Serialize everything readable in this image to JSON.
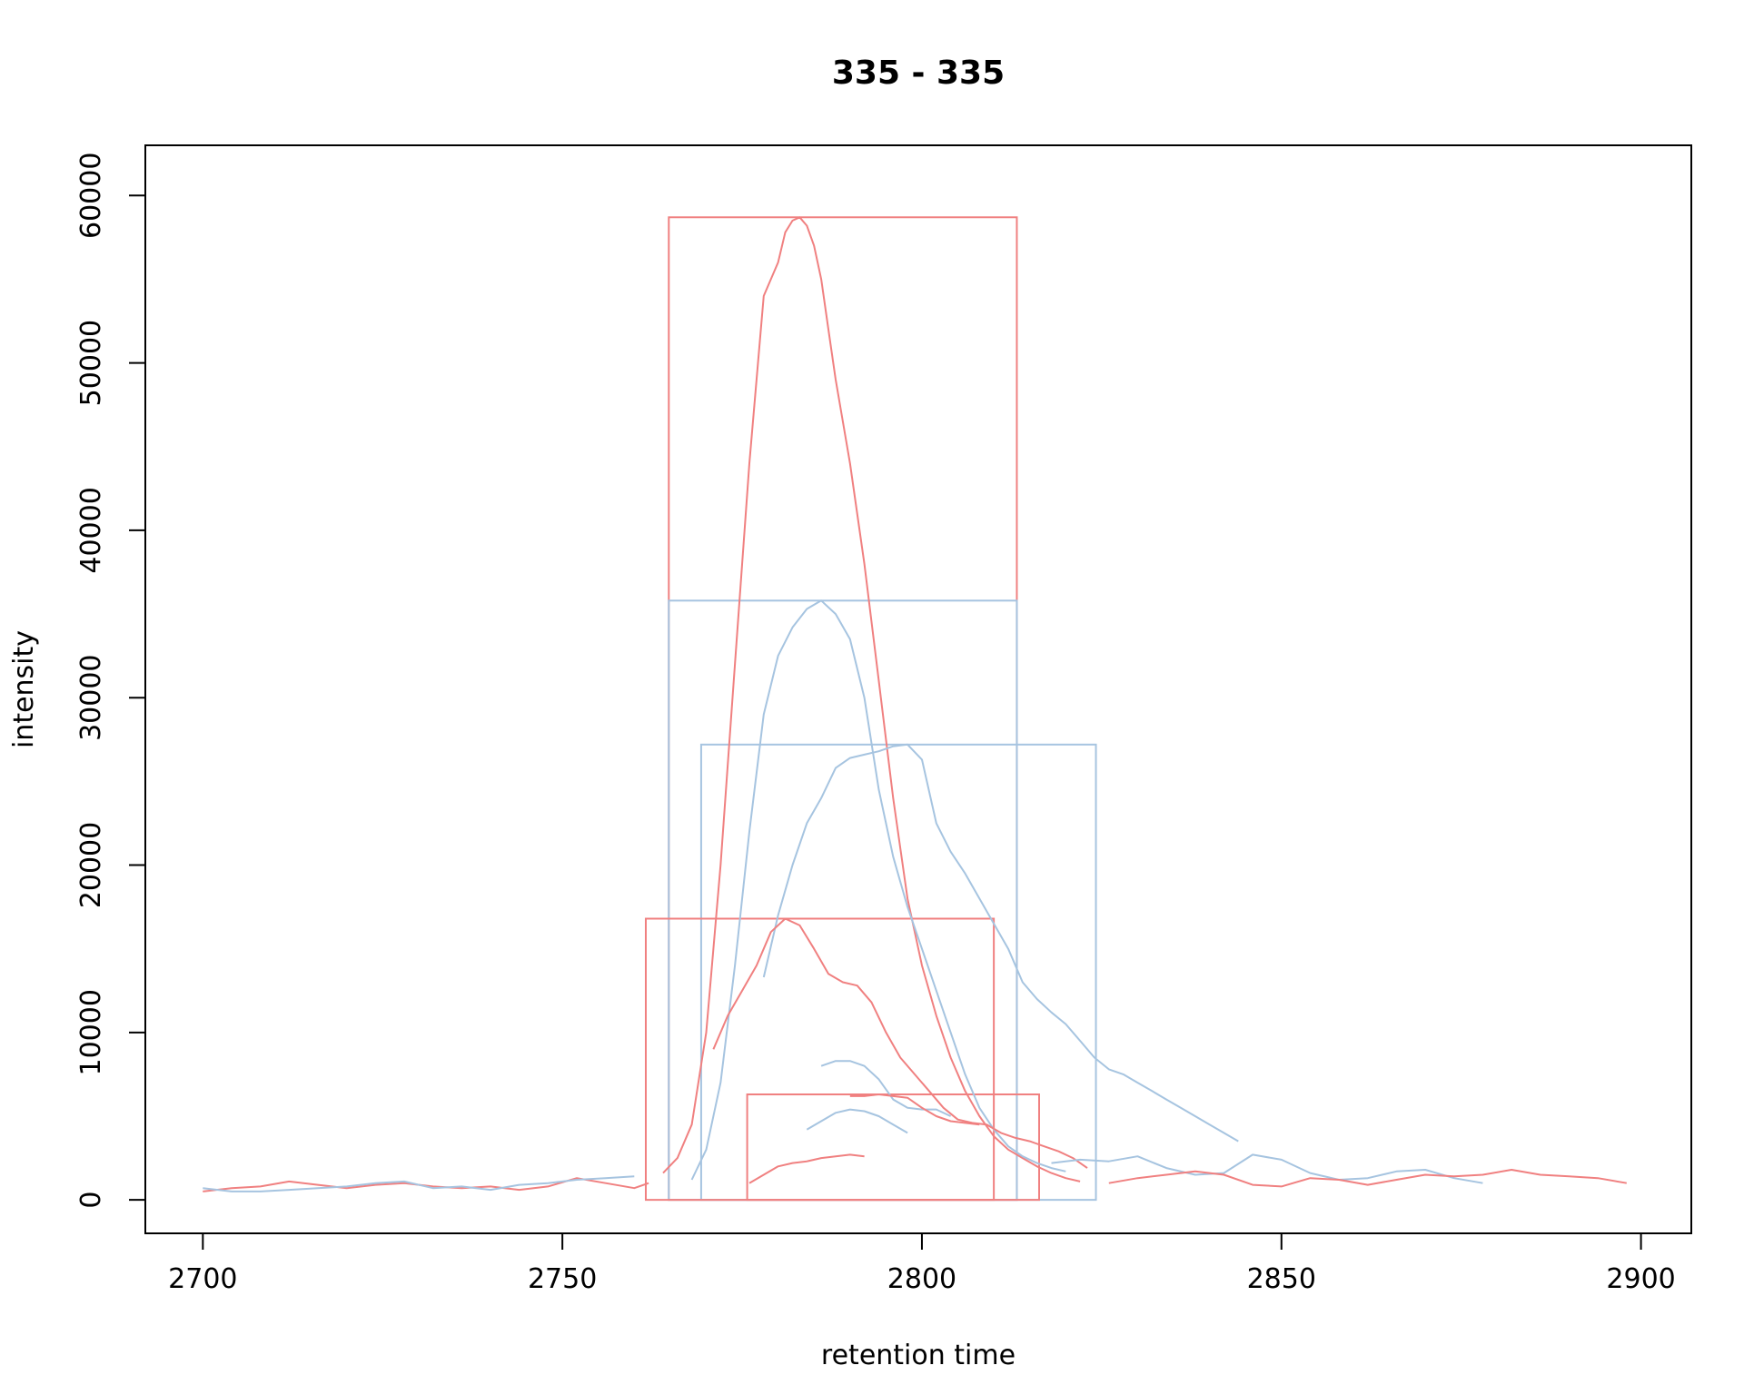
{
  "chart_data": {
    "type": "line",
    "title": "335 - 335",
    "xlabel": "retention time",
    "ylabel": "intensity",
    "xlim": [
      2692,
      2907
    ],
    "ylim": [
      -2000,
      63000
    ],
    "x_ticks": [
      2700,
      2750,
      2800,
      2850,
      2900
    ],
    "y_ticks": [
      0,
      10000,
      20000,
      30000,
      40000,
      50000,
      60000
    ],
    "grid": false,
    "legend": "none",
    "colors": {
      "red": "#f08080",
      "blue": "#a6c4e0"
    },
    "peak_rects": [
      {
        "color": "red",
        "x0": 2764.8,
        "x1": 2813.2,
        "y0": 0,
        "y1": 58700
      },
      {
        "color": "blue",
        "x0": 2764.8,
        "x1": 2813.2,
        "y0": 0,
        "y1": 35800
      },
      {
        "color": "blue",
        "x0": 2769.3,
        "x1": 2824.2,
        "y0": 0,
        "y1": 27200
      },
      {
        "color": "red",
        "x0": 2761.6,
        "x1": 2810.0,
        "y0": 0,
        "y1": 16800
      },
      {
        "color": "red",
        "x0": 2775.7,
        "x1": 2816.3,
        "y0": 0,
        "y1": 6300
      }
    ],
    "series": [
      {
        "color": "red",
        "x": [
          2764,
          2766,
          2768,
          2770,
          2772,
          2774,
          2776,
          2778,
          2780,
          2781,
          2782,
          2783,
          2784,
          2785,
          2786,
          2787,
          2788,
          2790,
          2792,
          2794,
          2796,
          2798,
          2800,
          2802,
          2804,
          2806,
          2808,
          2810,
          2812,
          2814,
          2816,
          2818,
          2820,
          2822
        ],
        "y": [
          1600,
          2500,
          4500,
          10000,
          20000,
          32000,
          44000,
          54000,
          56000,
          57800,
          58500,
          58700,
          58200,
          57000,
          55000,
          52000,
          49000,
          44000,
          38000,
          31000,
          24000,
          18000,
          14000,
          11000,
          8500,
          6500,
          5000,
          3800,
          3000,
          2500,
          2000,
          1600,
          1300,
          1100
        ]
      },
      {
        "color": "blue",
        "x": [
          2768,
          2770,
          2772,
          2774,
          2776,
          2778,
          2780,
          2782,
          2784,
          2786,
          2788,
          2790,
          2792,
          2794,
          2796,
          2798,
          2800,
          2802,
          2804,
          2806,
          2808,
          2810,
          2812,
          2814,
          2816,
          2818,
          2820
        ],
        "y": [
          1200,
          3000,
          7000,
          14000,
          22000,
          29000,
          32500,
          34200,
          35300,
          35800,
          35000,
          33500,
          30000,
          24500,
          20500,
          17500,
          15000,
          12500,
          10000,
          7500,
          5500,
          4200,
          3200,
          2600,
          2200,
          1900,
          1700
        ]
      },
      {
        "color": "blue",
        "x": [
          2778,
          2780,
          2782,
          2784,
          2786,
          2788,
          2790,
          2792,
          2794,
          2796,
          2798,
          2800,
          2802,
          2804,
          2806,
          2808,
          2810,
          2812,
          2814,
          2816,
          2818,
          2820,
          2822,
          2824,
          2826,
          2828,
          2830,
          2832,
          2834,
          2836,
          2838,
          2840,
          2842,
          2844
        ],
        "y": [
          13300,
          17000,
          20000,
          22500,
          24000,
          25800,
          26400,
          26600,
          26800,
          27100,
          27200,
          26300,
          22500,
          20800,
          19500,
          18000,
          16500,
          15000,
          13000,
          12000,
          11200,
          10500,
          9500,
          8500,
          7800,
          7500,
          7000,
          6500,
          6000,
          5500,
          5000,
          4500,
          4000,
          3500
        ]
      },
      {
        "color": "red",
        "x": [
          2771,
          2773,
          2775,
          2777,
          2779,
          2781,
          2783,
          2785,
          2787,
          2789,
          2791,
          2793,
          2795,
          2797,
          2799,
          2801,
          2803,
          2805,
          2807,
          2809,
          2811,
          2813,
          2815,
          2817,
          2819,
          2821,
          2823
        ],
        "y": [
          9000,
          11000,
          12500,
          14000,
          16000,
          16800,
          16400,
          15000,
          13500,
          13000,
          12800,
          11800,
          10000,
          8500,
          7500,
          6500,
          5500,
          4800,
          4600,
          4500,
          4000,
          3700,
          3500,
          3200,
          2900,
          2500,
          1900
        ]
      },
      {
        "color": "blue",
        "x": [
          2786,
          2788,
          2790,
          2792,
          2794,
          2796,
          2798,
          2800,
          2802,
          2804
        ],
        "y": [
          8000,
          8300,
          8300,
          8000,
          7200,
          6000,
          5500,
          5400,
          5400,
          5000
        ]
      },
      {
        "color": "red",
        "x": [
          2790,
          2792,
          2794,
          2796,
          2798,
          2800,
          2802,
          2804,
          2806,
          2808
        ],
        "y": [
          6200,
          6200,
          6300,
          6200,
          6100,
          5500,
          5000,
          4700,
          4600,
          4500
        ]
      },
      {
        "color": "blue",
        "x": [
          2784,
          2786,
          2788,
          2790,
          2792,
          2794,
          2796,
          2798
        ],
        "y": [
          4200,
          4700,
          5200,
          5400,
          5300,
          5000,
          4500,
          4000
        ]
      },
      {
        "color": "red",
        "x": [
          2776,
          2778,
          2780,
          2782,
          2784,
          2786,
          2788,
          2790,
          2792
        ],
        "y": [
          1000,
          1500,
          2000,
          2200,
          2300,
          2500,
          2600,
          2700,
          2600
        ]
      },
      {
        "color": "red",
        "x": [
          2700,
          2704,
          2708,
          2712,
          2716,
          2720,
          2724,
          2728,
          2732,
          2736,
          2740,
          2744,
          2748,
          2752,
          2756,
          2760,
          2762
        ],
        "y": [
          500,
          700,
          800,
          1100,
          900,
          700,
          900,
          1000,
          800,
          700,
          800,
          600,
          800,
          1300,
          1000,
          700,
          1000
        ]
      },
      {
        "color": "blue",
        "x": [
          2700,
          2704,
          2708,
          2712,
          2716,
          2720,
          2724,
          2728,
          2732,
          2736,
          2740,
          2744,
          2748,
          2752,
          2756,
          2760
        ],
        "y": [
          700,
          500,
          500,
          600,
          700,
          800,
          1000,
          1100,
          700,
          800,
          600,
          900,
          1000,
          1200,
          1300,
          1400
        ]
      },
      {
        "color": "blue",
        "x": [
          2818,
          2822,
          2826,
          2830,
          2834,
          2838,
          2842,
          2846,
          2850,
          2854,
          2858,
          2862,
          2866,
          2870,
          2874,
          2878
        ],
        "y": [
          2200,
          2400,
          2300,
          2600,
          1900,
          1500,
          1600,
          2700,
          2400,
          1600,
          1200,
          1300,
          1700,
          1800,
          1300,
          1000
        ]
      },
      {
        "color": "red",
        "x": [
          2826,
          2830,
          2834,
          2838,
          2842,
          2846,
          2850,
          2854,
          2858,
          2862,
          2866,
          2870,
          2874,
          2878,
          2882,
          2886,
          2890,
          2894,
          2898
        ],
        "y": [
          1000,
          1300,
          1500,
          1700,
          1500,
          900,
          800,
          1300,
          1200,
          900,
          1200,
          1500,
          1400,
          1500,
          1800,
          1500,
          1400,
          1300,
          1000
        ]
      }
    ]
  }
}
